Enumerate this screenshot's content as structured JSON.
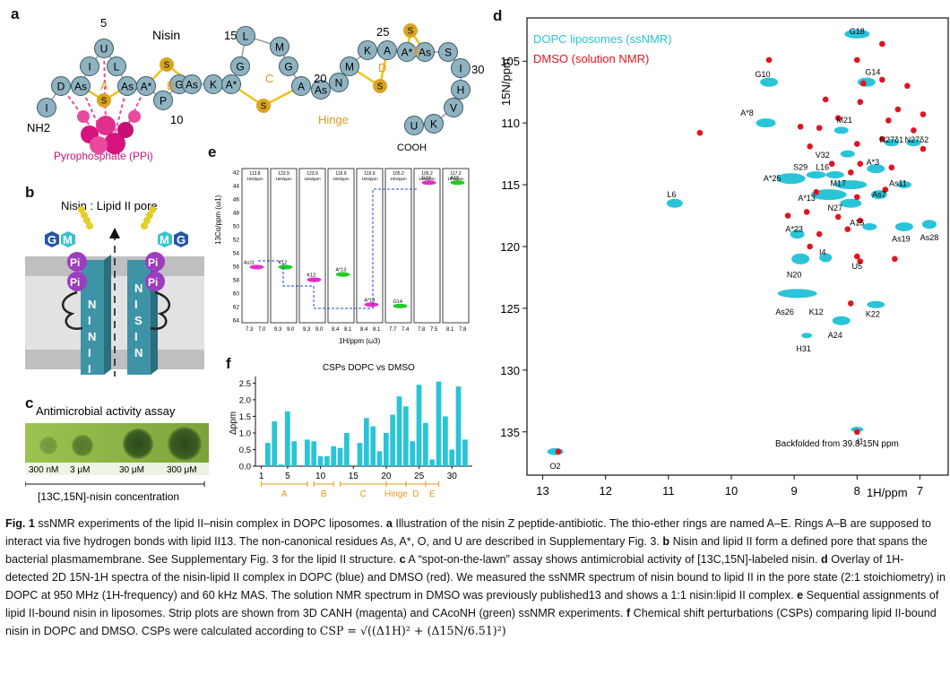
{
  "panel_labels": {
    "a": "a",
    "b": "b",
    "c": "c",
    "d": "d",
    "e": "e",
    "f": "f"
  },
  "panel_a": {
    "title": "Nisin",
    "residues": [
      "I",
      "D",
      "As",
      "I",
      "U",
      "L",
      "As",
      "A*",
      "P",
      "G",
      "As",
      "K",
      "A*",
      "G",
      "L",
      "M",
      "G",
      "A",
      "As",
      "N",
      "M",
      "K",
      "A",
      "A*",
      "As",
      "S",
      "I",
      "H",
      "V",
      "K",
      "U"
    ],
    "ring_labels": [
      "A",
      "B",
      "C",
      "D",
      "E"
    ],
    "numbers": [
      "5",
      "10",
      "15",
      "20",
      "25",
      "30"
    ],
    "thio": "S",
    "nh2": "NH2",
    "cooh": "COOH",
    "hinge": "Hinge",
    "ppi": "Pyrophosphate (PPi)",
    "o_res": "O"
  },
  "panel_b": {
    "title": "Nisin : Lipid II pore",
    "left_chain": [
      "N",
      "I",
      "N",
      "I",
      "I"
    ],
    "right_chain": [
      "N",
      "I",
      "S",
      "I",
      "N"
    ],
    "pi": "Pi",
    "g": "G",
    "m": "M"
  },
  "panel_c": {
    "title": "Antimicrobial activity assay",
    "spots": [
      "300 nM",
      "3 μM",
      "30 μM",
      "300 μM"
    ],
    "xlabel": "[13C,15N]-nisin concentration"
  },
  "panel_d": {
    "legend": [
      "DOPC liposomes (ssNMR)",
      "DMSO (solution NMR)"
    ],
    "colors": {
      "dopc": "#29c4d8",
      "dmso": "#e0141e"
    },
    "xlabel": "1H/ppm",
    "ylabel": "15N/ppm",
    "xticks": [
      "13",
      "12",
      "11",
      "10",
      "9",
      "8",
      "7"
    ],
    "yticks": [
      "105",
      "110",
      "115",
      "120",
      "125",
      "130",
      "135"
    ],
    "peak_labels": [
      "G18",
      "G10",
      "G14",
      "A*8",
      "M21",
      "N27δ1",
      "N27δ2",
      "V32",
      "A*3",
      "S29",
      "L16",
      "A*25",
      "M17",
      "As11",
      "L6",
      "A*13",
      "As7",
      "N27",
      "A15",
      "As19",
      "As28",
      "A*23",
      "I4",
      "U5",
      "N20",
      "As26",
      "K12",
      "K22",
      "A24",
      "H31",
      "I1",
      "O2"
    ],
    "annotation": "Backfolded from 39.8 15N ppm"
  },
  "panel_e": {
    "strip_headers": [
      "113.8",
      "123.9",
      "123.9",
      "115.9",
      "115.9",
      "105.2",
      "105.2",
      "117.2"
    ],
    "strip_unit": "15N/ppm",
    "ylabel": "13Cα/ppm (ω1)",
    "xlabel": "1H/ppm (ω3)",
    "yticks": [
      "42",
      "44",
      "46",
      "48",
      "50",
      "52",
      "54",
      "56",
      "58",
      "60",
      "62",
      "64"
    ],
    "strip_xticks": [
      [
        "7.3",
        "7.0"
      ],
      [
        "9.3",
        "9.0"
      ],
      [
        "9.3",
        "9.0"
      ],
      [
        "8.4",
        "8.1"
      ],
      [
        "8.4",
        "8.1"
      ],
      [
        "7.7",
        "7.4"
      ],
      [
        "7.8",
        "7.5"
      ],
      [
        "8.1",
        "7.8"
      ]
    ],
    "peak_labels": [
      "As11",
      "K12",
      "K12",
      "A*13",
      "A*13",
      "G14",
      "G14",
      "A15"
    ]
  },
  "panel_f": {
    "title": "CSPs DOPC vs DMSO",
    "ylabel": "Δppm",
    "ring_labels": [
      "A",
      "B",
      "C",
      "Hinge",
      "D",
      "E"
    ],
    "chart_data": {
      "type": "bar",
      "title": "CSPs DOPC vs DMSO",
      "xlabel": "",
      "ylabel": "Δppm",
      "x": [
        1,
        2,
        3,
        4,
        5,
        6,
        7,
        8,
        9,
        10,
        11,
        12,
        13,
        14,
        15,
        16,
        17,
        18,
        19,
        20,
        21,
        22,
        23,
        24,
        25,
        26,
        27,
        28,
        29,
        30,
        31,
        32
      ],
      "values": [
        0.0,
        0.7,
        1.35,
        0.05,
        1.65,
        0.75,
        0.0,
        0.8,
        0.75,
        0.3,
        0.3,
        0.6,
        0.55,
        1.0,
        0.0,
        0.7,
        1.45,
        1.2,
        0.45,
        1.0,
        1.55,
        2.1,
        1.8,
        0.75,
        2.45,
        1.3,
        0.2,
        2.55,
        1.5,
        0.5,
        2.4,
        0.8
      ],
      "ylim": [
        0,
        2.7
      ],
      "yticks": [
        "0.0",
        "0.5",
        "1.0",
        "1.5",
        "2.0",
        "2.5"
      ],
      "xticks": [
        "1",
        "5",
        "10",
        "15",
        "20",
        "25",
        "30"
      ],
      "bar_color": "#29c4d8"
    }
  },
  "caption": {
    "fig": "Fig. 1",
    "lead": " ssNMR experiments of the lipid II–nisin complex in DOPC liposomes. ",
    "a_lbl": "a",
    "a_txt": " Illustration of the nisin Z peptide-antibiotic. The thio-ether rings are named A–E. Rings A–B are supposed to interact via five hydrogen bonds with lipid II13. The non-canonical residues As, A*, O, and U are described in Supplementary Fig. 3. ",
    "b_lbl": "b",
    "b_txt": " Nisin and lipid II form a defined pore that spans the bacterial plasmamembrane. See Supplementary Fig. 3 for the lipid II structure. ",
    "c_lbl": "c",
    "c_txt": " A “spot-on-the-lawn” assay shows antimicrobial activity of [13C,15N]-labeled nisin. ",
    "d_lbl": "d",
    "d_txt": " Overlay of 1H-detected 2D 15N-1H spectra of the nisin-lipid II complex in DOPC (blue) and DMSO (red). We measured the ssNMR spectrum of nisin bound to lipid II in the pore state (2:1 stoichiometry) in DOPC at 950 MHz (1H-frequency) and 60 kHz MAS. The solution NMR spectrum in DMSO was previously published13 and shows a 1:1 nisin:lipid II complex. ",
    "e_lbl": "e",
    "e_txt": " Sequential assignments of lipid II-bound nisin in liposomes. Strip plots are shown from 3D CANH (magenta) and CAcoNH (green) ssNMR experiments. ",
    "f_lbl": "f",
    "f_txt": " Chemical shift perturbations (CSPs) comparing lipid II-bound nisin in DOPC and DMSO. CSPs were calculated according to ",
    "formula": "CSP = √((Δ1H)² + (Δ15N/6.51)²)"
  }
}
